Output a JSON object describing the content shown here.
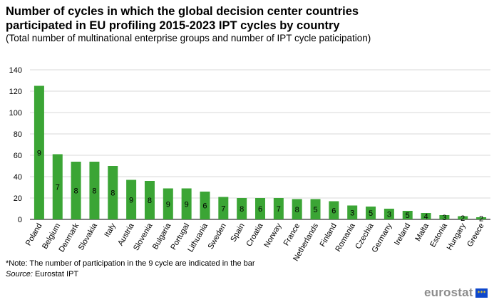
{
  "title": "Number of cycles in which the global decision center countries participated in EU profiling 2015-2023 IPT cycles by country",
  "subtitle": "(Total number of multinational enterprise groups and number of IPT cycle paticipation)",
  "note": "*Note: The number of participation in the 9 cycle are indicated in the bar",
  "source_label": "Source:",
  "source_text": " Eurostat IPT",
  "logo_text": "eurostat",
  "colors": {
    "bar": "#3ba535",
    "grid": "#d9d9d9",
    "axis": "#000000"
  },
  "chart_data": {
    "type": "bar",
    "categories": [
      "Poland",
      "Belgium",
      "Denmark",
      "Slovakia",
      "Italy",
      "Austria",
      "Slovenia",
      "Bulgaria",
      "Portugal",
      "Lithuania",
      "Sweden",
      "Spain",
      "Croatia",
      "Norway",
      "France",
      "Netherlands",
      "Finland",
      "Romania",
      "Czechia",
      "Germany",
      "Ireland",
      "Malta",
      "Estonia",
      "Hungary",
      "Greece"
    ],
    "values": [
      125,
      61,
      54,
      54,
      50,
      37,
      36,
      29,
      29,
      26,
      21,
      20,
      20,
      20,
      19,
      19,
      17,
      13,
      12,
      10,
      8,
      6,
      4,
      3,
      2
    ],
    "bar_labels": [
      "9",
      "7",
      "8",
      "8",
      "8",
      "9",
      "8",
      "9",
      "9",
      "6",
      "7",
      "8",
      "6",
      "7",
      "8",
      "5",
      "6",
      "3",
      "5",
      "3",
      "5",
      "4",
      "3",
      "2",
      "2"
    ],
    "yticks": [
      0,
      20,
      40,
      60,
      80,
      100,
      120,
      140
    ],
    "ylim": [
      0,
      140
    ],
    "grid": true,
    "legend": "none"
  }
}
